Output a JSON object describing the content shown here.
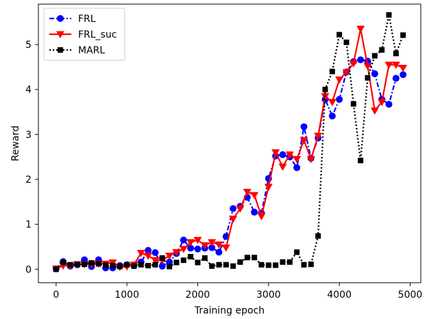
{
  "chart_data": {
    "type": "line",
    "xlabel": "Training epoch",
    "ylabel": "Reward",
    "xlim": [
      -250,
      5150
    ],
    "ylim": [
      -0.3,
      5.9
    ],
    "xticks": [
      0,
      1000,
      2000,
      3000,
      4000,
      5000
    ],
    "yticks": [
      0,
      1,
      2,
      3,
      4,
      5
    ],
    "grid": false,
    "legend_position": "top-left",
    "x": [
      0,
      100,
      200,
      300,
      400,
      500,
      600,
      700,
      800,
      900,
      1000,
      1100,
      1200,
      1300,
      1400,
      1500,
      1600,
      1700,
      1800,
      1900,
      2000,
      2100,
      2200,
      2300,
      2400,
      2500,
      2600,
      2700,
      2800,
      2900,
      3000,
      3100,
      3200,
      3300,
      3400,
      3500,
      3600,
      3700,
      3800,
      3900,
      4000,
      4100,
      4200,
      4300,
      4400,
      4500,
      4600,
      4700,
      4800,
      4900
    ],
    "series": [
      {
        "name": "FRL",
        "color": "#0000ff",
        "marker": "circle",
        "linestyle": "dashdot",
        "values": [
          0.01,
          0.17,
          0.07,
          0.1,
          0.21,
          0.06,
          0.21,
          0.03,
          0.03,
          0.08,
          0.1,
          0.08,
          0.16,
          0.42,
          0.37,
          0.07,
          0.16,
          0.35,
          0.65,
          0.47,
          0.45,
          0.47,
          0.48,
          0.38,
          0.73,
          1.35,
          1.4,
          1.6,
          1.27,
          1.25,
          2.02,
          2.52,
          2.55,
          2.5,
          2.26,
          3.17,
          2.47,
          2.92,
          3.78,
          3.41,
          3.78,
          4.39,
          4.62,
          4.66,
          4.63,
          4.35,
          3.78,
          3.67,
          4.25,
          4.33
        ]
      },
      {
        "name": "FRL_suc",
        "color": "#ff0000",
        "marker": "triangle-down",
        "linestyle": "solid",
        "values": [
          0.01,
          0.08,
          0.08,
          0.11,
          0.11,
          0.11,
          0.12,
          0.12,
          0.15,
          0.05,
          0.06,
          0.1,
          0.36,
          0.3,
          0.2,
          0.2,
          0.3,
          0.38,
          0.45,
          0.6,
          0.65,
          0.53,
          0.6,
          0.55,
          0.48,
          1.12,
          1.35,
          1.72,
          1.65,
          1.18,
          1.83,
          2.6,
          2.28,
          2.55,
          2.45,
          2.87,
          2.45,
          2.97,
          3.85,
          3.72,
          4.22,
          4.38,
          4.58,
          5.35,
          4.52,
          3.53,
          3.72,
          4.55,
          4.55,
          4.48
        ]
      },
      {
        "name": "MARL",
        "color": "#000000",
        "marker": "square",
        "linestyle": "dotted",
        "values": [
          0.0,
          0.15,
          0.1,
          0.11,
          0.11,
          0.14,
          0.12,
          0.09,
          0.08,
          0.06,
          0.1,
          0.07,
          0.1,
          0.08,
          0.1,
          0.25,
          0.06,
          0.15,
          0.2,
          0.28,
          0.15,
          0.25,
          0.07,
          0.1,
          0.1,
          0.07,
          0.16,
          0.26,
          0.26,
          0.1,
          0.09,
          0.09,
          0.16,
          0.16,
          0.38,
          0.1,
          0.11,
          0.74,
          4.0,
          4.4,
          5.22,
          5.05,
          3.68,
          2.42,
          4.26,
          4.75,
          4.88,
          5.66,
          4.8,
          5.21
        ]
      }
    ]
  }
}
